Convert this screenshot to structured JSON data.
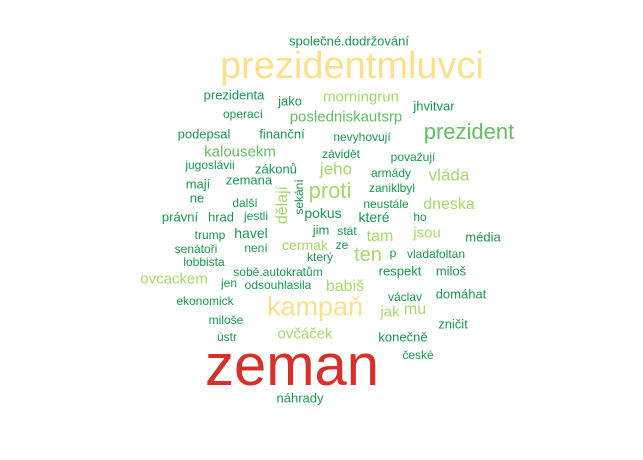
{
  "colors": {
    "red": "#d7302a",
    "yellow": "#fde08d",
    "lightgreen": "#a6d96a",
    "midgreen": "#66bd63",
    "green": "#1a9850"
  },
  "words": [
    {
      "text": "zeman",
      "color": "red"
    },
    {
      "text": "prezidentmluvci",
      "color": "yellow"
    },
    {
      "text": "kampaň",
      "color": "yellow"
    },
    {
      "text": "prezident",
      "color": "midgreen"
    },
    {
      "text": "proti",
      "color": "lightgreen"
    },
    {
      "text": "ten",
      "color": "lightgreen"
    },
    {
      "text": "společné.dodržování",
      "color": "green"
    },
    {
      "text": "prezidenta",
      "color": "green"
    },
    {
      "text": "jako",
      "color": "green"
    },
    {
      "text": "morningrun",
      "color": "lightgreen"
    },
    {
      "text": "jhvitvar",
      "color": "green"
    },
    {
      "text": "operací",
      "color": "green"
    },
    {
      "text": "posledniskautsrp",
      "color": "midgreen"
    },
    {
      "text": "podepsal",
      "color": "green"
    },
    {
      "text": "finanční",
      "color": "green"
    },
    {
      "text": "nevyhovují",
      "color": "green"
    },
    {
      "text": "kalousekm",
      "color": "midgreen"
    },
    {
      "text": "závidět",
      "color": "green"
    },
    {
      "text": "považují",
      "color": "green"
    },
    {
      "text": "jugoslávii",
      "color": "green"
    },
    {
      "text": "zákonů",
      "color": "green"
    },
    {
      "text": "jeho",
      "color": "lightgreen"
    },
    {
      "text": "armády",
      "color": "green"
    },
    {
      "text": "vláda",
      "color": "lightgreen"
    },
    {
      "text": "mají",
      "color": "green"
    },
    {
      "text": "zemana",
      "color": "green"
    },
    {
      "text": "zaniklbyl",
      "color": "green"
    },
    {
      "text": "ne",
      "color": "green"
    },
    {
      "text": "další",
      "color": "green"
    },
    {
      "text": "dělají",
      "color": "lightgreen"
    },
    {
      "text": "sekání",
      "color": "green"
    },
    {
      "text": "neustále",
      "color": "green"
    },
    {
      "text": "dneska",
      "color": "lightgreen"
    },
    {
      "text": "právní",
      "color": "green"
    },
    {
      "text": "hrad",
      "color": "green"
    },
    {
      "text": "jestli",
      "color": "green"
    },
    {
      "text": "pokus",
      "color": "green"
    },
    {
      "text": "které",
      "color": "green"
    },
    {
      "text": "ho",
      "color": "green"
    },
    {
      "text": "trump",
      "color": "green"
    },
    {
      "text": "havel",
      "color": "green"
    },
    {
      "text": "jim",
      "color": "green"
    },
    {
      "text": "stát",
      "color": "green"
    },
    {
      "text": "tam",
      "color": "lightgreen"
    },
    {
      "text": "jsou",
      "color": "lightgreen"
    },
    {
      "text": "média",
      "color": "green"
    },
    {
      "text": "senátoři",
      "color": "green"
    },
    {
      "text": "není",
      "color": "green"
    },
    {
      "text": "cermak",
      "color": "lightgreen"
    },
    {
      "text": "ze",
      "color": "green"
    },
    {
      "text": "který",
      "color": "green"
    },
    {
      "text": "p",
      "color": "green"
    },
    {
      "text": "vladafoltan",
      "color": "green"
    },
    {
      "text": "lobbista",
      "color": "green"
    },
    {
      "text": "ovcackem",
      "color": "lightgreen"
    },
    {
      "text": "jen",
      "color": "green"
    },
    {
      "text": "sobě.autokratům",
      "color": "green"
    },
    {
      "text": "respekt",
      "color": "green"
    },
    {
      "text": "miloš",
      "color": "green"
    },
    {
      "text": "odsouhlasila",
      "color": "green"
    },
    {
      "text": "babiš",
      "color": "lightgreen"
    },
    {
      "text": "ekonomick",
      "color": "green"
    },
    {
      "text": "václav",
      "color": "green"
    },
    {
      "text": "domáhat",
      "color": "green"
    },
    {
      "text": "jak",
      "color": "lightgreen"
    },
    {
      "text": "mu",
      "color": "lightgreen"
    },
    {
      "text": "miloše",
      "color": "green"
    },
    {
      "text": "zničit",
      "color": "green"
    },
    {
      "text": "ovčáček",
      "color": "lightgreen"
    },
    {
      "text": "ústr",
      "color": "green"
    },
    {
      "text": "konečně",
      "color": "green"
    },
    {
      "text": "české",
      "color": "green"
    },
    {
      "text": "náhrady",
      "color": "green"
    }
  ]
}
